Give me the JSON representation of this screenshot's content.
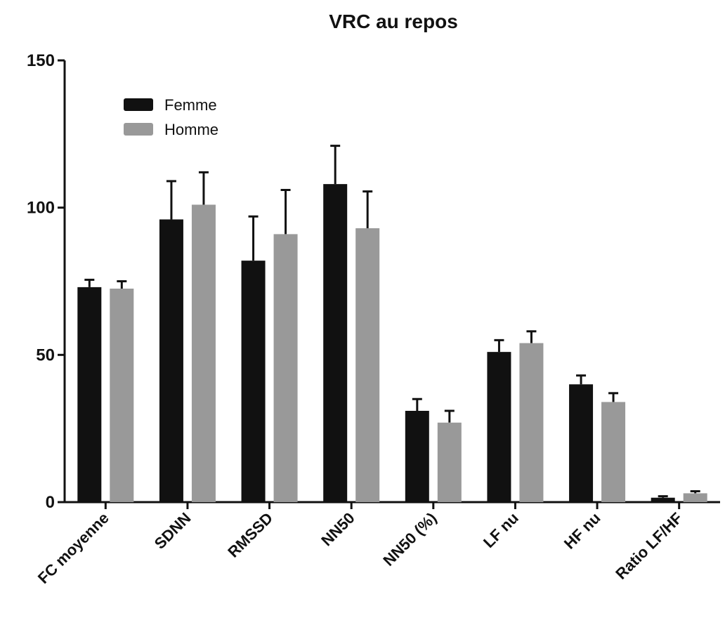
{
  "chart_data": {
    "type": "bar",
    "title": "VRC au repos",
    "xlabel": "",
    "ylabel": "",
    "categories": [
      "FC moyenne",
      "SDNN",
      "RMSSD",
      "NN50",
      "NN50 (%)",
      "LF nu",
      "HF nu",
      "Ratio LF/HF"
    ],
    "series": [
      {
        "name": "Femme",
        "color": "#111111",
        "values": [
          73,
          96,
          82,
          108,
          31,
          51,
          40,
          1.5
        ],
        "errors": [
          2.5,
          13,
          15,
          13,
          4,
          4,
          3,
          0.5
        ]
      },
      {
        "name": "Homme",
        "color": "#999999",
        "values": [
          72.5,
          101,
          91,
          93,
          27,
          54,
          34,
          3
        ],
        "errors": [
          2.5,
          11,
          15,
          12.5,
          4,
          4,
          3,
          0.7
        ]
      }
    ],
    "ylim": [
      0,
      150
    ],
    "yticks": [
      0,
      50,
      100,
      150
    ],
    "grid": false,
    "legend_position": "top-left"
  }
}
